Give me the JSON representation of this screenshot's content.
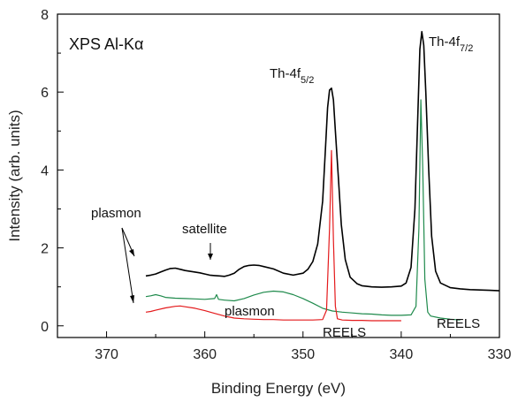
{
  "chart_data": {
    "type": "line",
    "title": "",
    "xlabel": "Binding Energy (eV)",
    "ylabel": "Intensity (arb. units)",
    "xlim": [
      375,
      330
    ],
    "ylim": [
      -0.3,
      8
    ],
    "x_reversed": true,
    "grid": false,
    "x_ticks": [
      370,
      360,
      350,
      340,
      330
    ],
    "y_ticks": [
      0,
      2,
      4,
      6,
      8
    ],
    "inset_label": "XPS Al-Kα",
    "series": [
      {
        "name": "XPS",
        "color": "#000000",
        "points": [
          [
            366,
            1.28
          ],
          [
            365.5,
            1.3
          ],
          [
            365,
            1.33
          ],
          [
            364.5,
            1.38
          ],
          [
            364,
            1.43
          ],
          [
            363.5,
            1.47
          ],
          [
            363,
            1.48
          ],
          [
            362.5,
            1.45
          ],
          [
            362,
            1.42
          ],
          [
            361,
            1.38
          ],
          [
            360.5,
            1.36
          ],
          [
            360,
            1.33
          ],
          [
            359.5,
            1.3
          ],
          [
            359,
            1.29
          ],
          [
            358.5,
            1.28
          ],
          [
            358,
            1.27
          ],
          [
            357.5,
            1.3
          ],
          [
            357,
            1.35
          ],
          [
            356.5,
            1.45
          ],
          [
            356,
            1.52
          ],
          [
            355.5,
            1.55
          ],
          [
            355,
            1.56
          ],
          [
            354.5,
            1.55
          ],
          [
            354,
            1.52
          ],
          [
            353,
            1.46
          ],
          [
            352,
            1.35
          ],
          [
            351,
            1.3
          ],
          [
            350,
            1.35
          ],
          [
            349.5,
            1.45
          ],
          [
            349,
            1.65
          ],
          [
            348.5,
            2.1
          ],
          [
            348,
            3.2
          ],
          [
            347.7,
            4.6
          ],
          [
            347.5,
            5.6
          ],
          [
            347.3,
            6.05
          ],
          [
            347.1,
            6.1
          ],
          [
            346.9,
            5.8
          ],
          [
            346.7,
            5.0
          ],
          [
            346.4,
            3.8
          ],
          [
            346.1,
            2.6
          ],
          [
            345.7,
            1.7
          ],
          [
            345.2,
            1.25
          ],
          [
            344.5,
            1.08
          ],
          [
            344,
            1.03
          ],
          [
            343,
            1.0
          ],
          [
            342,
            0.99
          ],
          [
            341,
            1.0
          ],
          [
            340,
            1.02
          ],
          [
            339.5,
            1.1
          ],
          [
            339,
            1.5
          ],
          [
            338.6,
            3.0
          ],
          [
            338.3,
            5.5
          ],
          [
            338.1,
            7.1
          ],
          [
            337.9,
            7.55
          ],
          [
            337.7,
            7.2
          ],
          [
            337.5,
            6.0
          ],
          [
            337.2,
            4.0
          ],
          [
            336.9,
            2.3
          ],
          [
            336.5,
            1.4
          ],
          [
            336,
            1.1
          ],
          [
            335,
            0.98
          ],
          [
            334,
            0.95
          ],
          [
            333,
            0.93
          ],
          [
            332,
            0.92
          ],
          [
            331,
            0.91
          ],
          [
            330,
            0.9
          ]
        ]
      },
      {
        "name": "",
        "color": "#1f8a4c",
        "points": [
          [
            366,
            0.75
          ],
          [
            365.5,
            0.77
          ],
          [
            365,
            0.8
          ],
          [
            364.5,
            0.77
          ],
          [
            364,
            0.73
          ],
          [
            363,
            0.71
          ],
          [
            362,
            0.7
          ],
          [
            361,
            0.69
          ],
          [
            360,
            0.68
          ],
          [
            359,
            0.7
          ],
          [
            358.8,
            0.8
          ],
          [
            358.6,
            0.68
          ],
          [
            358,
            0.66
          ],
          [
            357,
            0.64
          ],
          [
            356,
            0.7
          ],
          [
            355,
            0.79
          ],
          [
            354,
            0.86
          ],
          [
            353,
            0.89
          ],
          [
            352,
            0.87
          ],
          [
            351,
            0.8
          ],
          [
            350,
            0.7
          ],
          [
            349,
            0.58
          ],
          [
            348,
            0.45
          ],
          [
            347,
            0.38
          ],
          [
            346,
            0.35
          ],
          [
            345,
            0.33
          ],
          [
            344,
            0.31
          ],
          [
            343,
            0.3
          ],
          [
            342,
            0.28
          ],
          [
            341,
            0.27
          ],
          [
            340,
            0.27
          ],
          [
            339,
            0.28
          ],
          [
            338.5,
            0.5
          ],
          [
            338.2,
            2.5
          ],
          [
            338.0,
            5.8
          ],
          [
            337.8,
            4.0
          ],
          [
            337.6,
            1.2
          ],
          [
            337.3,
            0.35
          ],
          [
            337,
            0.25
          ],
          [
            336,
            0.2
          ],
          [
            335,
            0.17
          ],
          [
            334,
            0.15
          ]
        ]
      },
      {
        "name": "",
        "color": "#e41a1c",
        "points": [
          [
            366,
            0.35
          ],
          [
            365.5,
            0.37
          ],
          [
            365,
            0.4
          ],
          [
            364,
            0.46
          ],
          [
            363,
            0.5
          ],
          [
            362.5,
            0.51
          ],
          [
            362,
            0.49
          ],
          [
            361,
            0.45
          ],
          [
            360,
            0.39
          ],
          [
            359,
            0.32
          ],
          [
            358,
            0.25
          ],
          [
            357,
            0.2
          ],
          [
            356,
            0.18
          ],
          [
            355,
            0.17
          ],
          [
            354,
            0.16
          ],
          [
            353,
            0.16
          ],
          [
            352,
            0.15
          ],
          [
            351,
            0.15
          ],
          [
            350,
            0.15
          ],
          [
            349,
            0.15
          ],
          [
            348,
            0.16
          ],
          [
            347.6,
            0.4
          ],
          [
            347.3,
            2.5
          ],
          [
            347.1,
            4.5
          ],
          [
            346.9,
            2.2
          ],
          [
            346.7,
            0.5
          ],
          [
            346.5,
            0.18
          ],
          [
            346,
            0.15
          ],
          [
            345,
            0.14
          ],
          [
            344,
            0.14
          ],
          [
            343,
            0.13
          ],
          [
            342,
            0.13
          ],
          [
            341,
            0.13
          ],
          [
            340,
            0.13
          ]
        ]
      }
    ],
    "annotations": [
      {
        "id": "inset",
        "text": "XPS Al-Kα"
      },
      {
        "id": "th45",
        "text": "Th-4f",
        "sub": "5/2"
      },
      {
        "id": "th47",
        "text": "Th-4f",
        "sub": "7/2"
      },
      {
        "id": "plasmon1",
        "text": "plasmon"
      },
      {
        "id": "satellite",
        "text": "satellite"
      },
      {
        "id": "plasmon2",
        "text": "plasmon"
      },
      {
        "id": "reels1",
        "text": "REELS"
      },
      {
        "id": "reels2",
        "text": "REELS"
      }
    ]
  }
}
